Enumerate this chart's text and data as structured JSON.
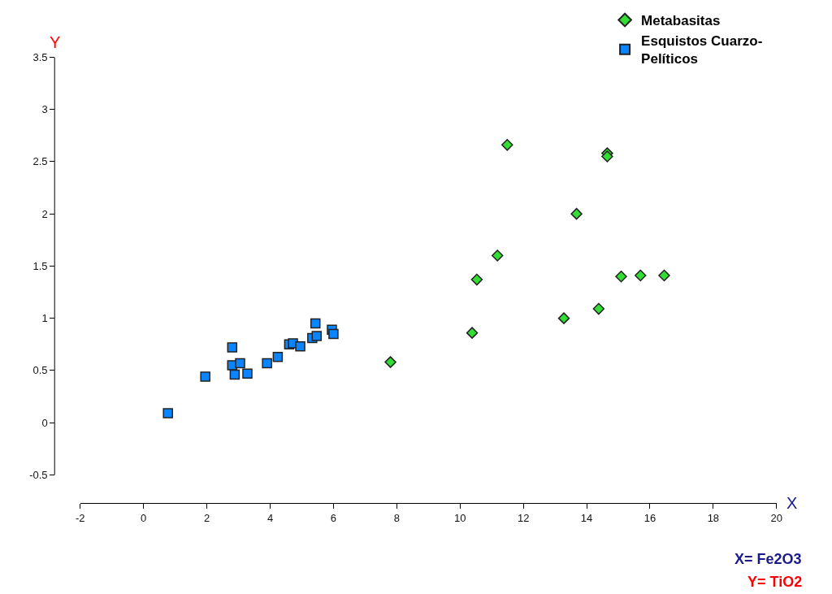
{
  "chart_data": {
    "type": "scatter",
    "xlabel": "X",
    "ylabel": "Y",
    "annotations": [
      "X= Fe2O3",
      "Y= TiO2"
    ],
    "xlim": [
      -2,
      20
    ],
    "xticks": [
      -2,
      0,
      2,
      4,
      6,
      8,
      10,
      12,
      14,
      16,
      18,
      20
    ],
    "ylim": [
      -0.77,
      3.5
    ],
    "yticks": [
      -0.5,
      0,
      0.5,
      1,
      1.5,
      2,
      2.5,
      3,
      3.5
    ],
    "grid": false,
    "legend": "top right",
    "series": [
      {
        "name": "Metabasitas",
        "color": "#33dd33",
        "marker": "diamond",
        "x": [
          7.8,
          10.38,
          10.53,
          11.18,
          11.49,
          14.65,
          14.65,
          13.68,
          13.28,
          14.38,
          15.09,
          15.7,
          16.45
        ],
        "values": [
          0.58,
          0.86,
          1.37,
          1.6,
          2.66,
          2.58,
          2.55,
          2.0,
          1.0,
          1.09,
          1.4,
          1.41,
          1.41
        ]
      },
      {
        "name": "Esquistos Cuarzo-Pelíticos",
        "color": "#0a84ff",
        "marker": "square",
        "x": [
          0.77,
          1.95,
          2.8,
          2.8,
          3.05,
          2.88,
          3.28,
          3.9,
          4.24,
          4.6,
          4.72,
          4.95,
          5.33,
          5.47,
          5.43,
          5.95,
          6.0
        ],
        "values": [
          0.09,
          0.44,
          0.72,
          0.55,
          0.57,
          0.46,
          0.47,
          0.57,
          0.63,
          0.75,
          0.76,
          0.73,
          0.81,
          0.83,
          0.95,
          0.89,
          0.85
        ]
      }
    ]
  }
}
